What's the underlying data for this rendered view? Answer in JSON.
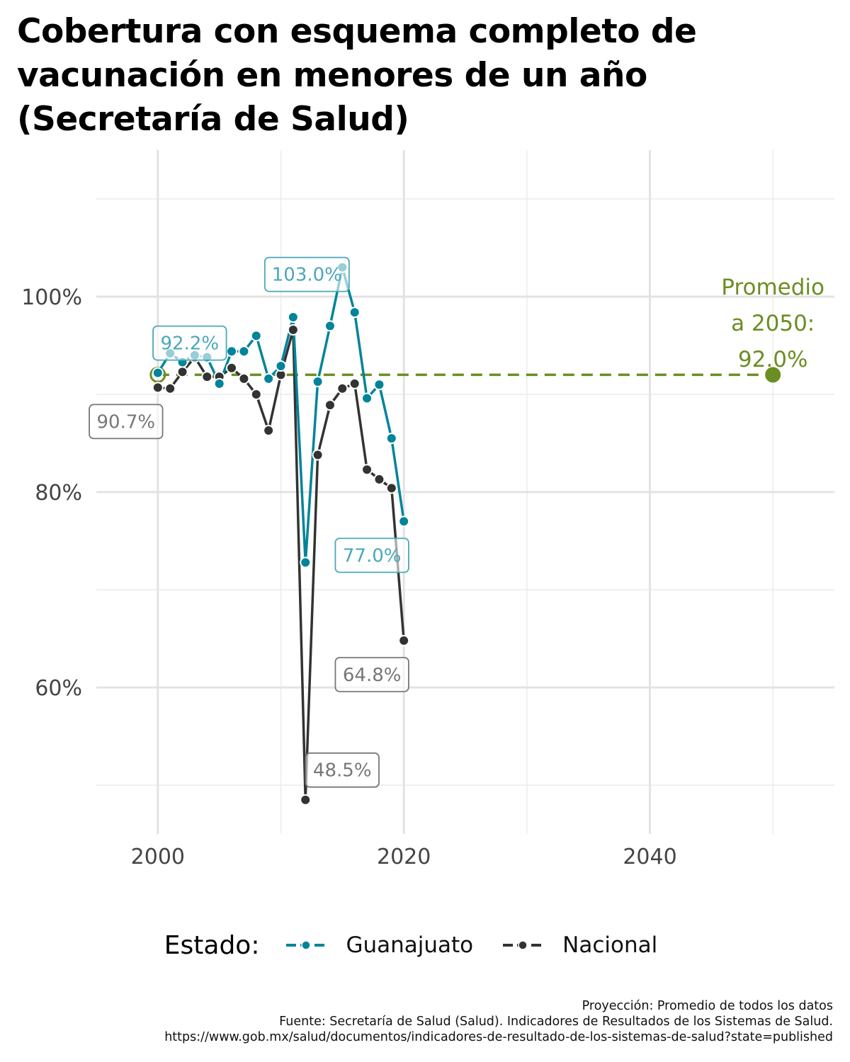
{
  "title_lines": [
    "Cobertura con esquema completo de",
    "vacunación en menores de un año",
    "(Secretaría de Salud)"
  ],
  "chart_data": {
    "type": "line",
    "title": "Cobertura con esquema completo de vacunación en menores de un año (Secretaría de Salud)",
    "xlabel": "",
    "ylabel": "",
    "xlim": [
      1995,
      2055
    ],
    "ylim": [
      0.45,
      1.15
    ],
    "x_ticks": [
      2000,
      2020,
      2040
    ],
    "y_ticks": [
      0.6,
      0.8,
      1.0
    ],
    "y_tick_labels": [
      "60%",
      "80%",
      "100%"
    ],
    "grid": true,
    "legend_position": "bottom",
    "series": [
      {
        "name": "Guanajuato",
        "color": "#00849A",
        "x": [
          2000,
          2001,
          2002,
          2003,
          2004,
          2005,
          2006,
          2007,
          2008,
          2009,
          2010,
          2011,
          2012,
          2013,
          2014,
          2015,
          2016,
          2017,
          2018,
          2019,
          2020
        ],
        "y": [
          0.922,
          0.942,
          0.933,
          0.94,
          0.938,
          0.911,
          0.944,
          0.944,
          0.96,
          0.916,
          0.929,
          0.979,
          0.728,
          0.913,
          0.97,
          1.03,
          0.984,
          0.896,
          0.91,
          0.855,
          0.77
        ]
      },
      {
        "name": "Nacional",
        "color": "#333333",
        "x": [
          2000,
          2001,
          2002,
          2003,
          2004,
          2005,
          2006,
          2007,
          2008,
          2009,
          2010,
          2011,
          2012,
          2013,
          2014,
          2015,
          2016,
          2017,
          2018,
          2019,
          2020
        ],
        "y": [
          0.907,
          0.906,
          0.923,
          0.938,
          0.918,
          0.918,
          0.927,
          0.916,
          0.9,
          0.863,
          0.92,
          0.966,
          0.485,
          0.838,
          0.889,
          0.906,
          0.911,
          0.823,
          0.813,
          0.804,
          0.648
        ]
      }
    ],
    "average_line": {
      "color": "#6B8E23",
      "value": 0.92,
      "x_from": 2000,
      "x_to": 2050
    },
    "labels": [
      {
        "text": "92.2%",
        "series": "Guanajuato",
        "x": 2000,
        "y": 0.922,
        "anchor": "above"
      },
      {
        "text": "103.0%",
        "series": "Guanajuato",
        "x": 2015,
        "y": 1.03,
        "anchor": "left"
      },
      {
        "text": "77.0%",
        "series": "Guanajuato",
        "x": 2020,
        "y": 0.77,
        "anchor": "below-left"
      },
      {
        "text": "90.7%",
        "series": "Nacional",
        "x": 2000,
        "y": 0.907,
        "anchor": "below-left"
      },
      {
        "text": "64.8%",
        "series": "Nacional",
        "x": 2020,
        "y": 0.648,
        "anchor": "below-left"
      },
      {
        "text": "48.5%",
        "series": "Nacional",
        "x": 2012,
        "y": 0.485,
        "anchor": "above-right"
      }
    ],
    "annotation_lines": [
      "Promedio",
      "a 2050:",
      "92.0%"
    ]
  },
  "legend": {
    "title": "Estado:",
    "items": [
      {
        "label": "Guanajuato",
        "color": "#00849A"
      },
      {
        "label": "Nacional",
        "color": "#333333"
      }
    ]
  },
  "caption": {
    "line1": "Proyección: Promedio de todos los datos",
    "line2": "Fuente: Secretaría de Salud (Salud). Indicadores de Resultados de los Sistemas de Salud.",
    "line3": "https://www.gob.mx/salud/documentos/indicadores-de-resultado-de-los-sistemas-de-salud?state=published"
  }
}
